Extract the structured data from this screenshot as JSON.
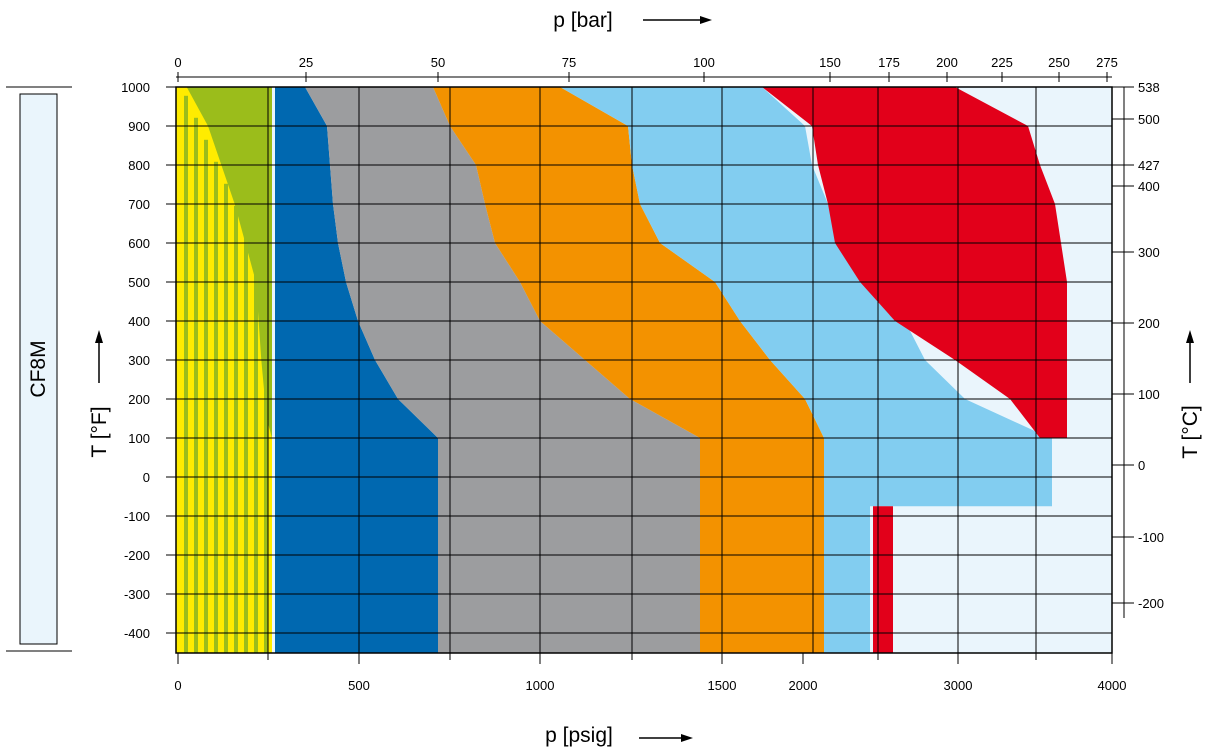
{
  "chart_data": {
    "type": "area",
    "material_label": "CF8M",
    "xlabel_top": "p [bar]",
    "xlabel_bottom": "p [psig]",
    "ylabel_left": "T [°F]",
    "ylabel_right": "T [°C]",
    "x_top_ticks": [
      "0",
      "25",
      "50",
      "75",
      "100",
      "125",
      "150",
      "175",
      "200",
      "225",
      "250",
      "275"
    ],
    "x_bottom_ticks": [
      "0",
      "500",
      "1000",
      "1500",
      "2000",
      "3000",
      "4000"
    ],
    "y_left_ticks": [
      "1000",
      "900",
      "800",
      "700",
      "600",
      "500",
      "400",
      "300",
      "200",
      "100",
      "0",
      "-100",
      "-200",
      "-300",
      "-400"
    ],
    "y_right_ticks": [
      "538",
      "500",
      "427",
      "400",
      "300",
      "200",
      "100",
      "0",
      "-100",
      "-200"
    ],
    "ylim_F": [
      -450,
      1000
    ],
    "colors": {
      "yellow": "#ffec00",
      "green": "#9bbd1b",
      "blue": "#0068b0",
      "gray": "#9c9d9f",
      "orange": "#f39200",
      "lightblue": "#82cdf0",
      "red": "#e2001a",
      "background": "#eaf5fc"
    },
    "series": [
      {
        "color": "yellow",
        "points": [
          [
            0,
            1000
          ],
          [
            0,
            -450
          ],
          [
            18,
            -450
          ],
          [
            18,
            100
          ],
          [
            18,
            1000
          ]
        ]
      },
      {
        "color": "green",
        "points": [
          [
            1,
            1000
          ],
          [
            18,
            1000
          ],
          [
            18,
            100
          ],
          [
            17,
            150
          ],
          [
            16,
            300
          ],
          [
            15,
            500
          ],
          [
            11,
            700
          ],
          [
            6,
            900
          ],
          [
            2,
            1000
          ]
        ]
      },
      {
        "color": "blue",
        "points": [
          [
            19,
            1000
          ],
          [
            25,
            1000
          ],
          [
            29,
            900
          ],
          [
            30,
            800
          ],
          [
            31,
            700
          ],
          [
            33,
            600
          ],
          [
            34,
            500
          ],
          [
            36,
            400
          ],
          [
            39,
            300
          ],
          [
            43,
            200
          ],
          [
            50,
            100
          ],
          [
            50,
            -450
          ],
          [
            19,
            -450
          ]
        ]
      },
      {
        "color": "gray",
        "points": [
          [
            25,
            1000
          ],
          [
            49,
            1000
          ],
          [
            52,
            900
          ],
          [
            55,
            800
          ],
          [
            57,
            700
          ],
          [
            59,
            600
          ],
          [
            62,
            500
          ],
          [
            68,
            400
          ],
          [
            77,
            300
          ],
          [
            87,
            200
          ],
          [
            99,
            100
          ],
          [
            99,
            -450
          ],
          [
            50,
            -450
          ],
          [
            50,
            100
          ],
          [
            43,
            200
          ],
          [
            39,
            300
          ],
          [
            36,
            400
          ],
          [
            34,
            500
          ],
          [
            33,
            600
          ],
          [
            31,
            700
          ],
          [
            30,
            800
          ],
          [
            29,
            900
          ]
        ]
      },
      {
        "color": "orange",
        "points": [
          [
            49,
            1000
          ],
          [
            73,
            1000
          ],
          [
            86,
            900
          ],
          [
            88,
            800
          ],
          [
            90,
            700
          ],
          [
            94,
            600
          ],
          [
            101,
            500
          ],
          [
            107,
            400
          ],
          [
            113,
            300
          ],
          [
            121,
            200
          ],
          [
            125,
            100
          ],
          [
            125,
            -450
          ],
          [
            99,
            -450
          ],
          [
            99,
            100
          ],
          [
            87,
            200
          ],
          [
            77,
            300
          ],
          [
            68,
            400
          ],
          [
            62,
            500
          ],
          [
            59,
            600
          ],
          [
            57,
            700
          ],
          [
            55,
            800
          ],
          [
            52,
            900
          ]
        ]
      },
      {
        "color": "lightblue",
        "points": [
          [
            73,
            1000
          ],
          [
            112,
            1000
          ],
          [
            121,
            900
          ],
          [
            123,
            800
          ],
          [
            126,
            700
          ],
          [
            131,
            600
          ],
          [
            139,
            500
          ],
          [
            150,
            400
          ],
          [
            165,
            300
          ],
          [
            184,
            200
          ],
          [
            206,
            100
          ],
          [
            234,
            100
          ],
          [
            234,
            -75
          ],
          [
            141,
            -75
          ],
          [
            141,
            -450
          ],
          [
            125,
            -450
          ],
          [
            125,
            100
          ],
          [
            121,
            200
          ],
          [
            113,
            300
          ],
          [
            107,
            400
          ],
          [
            101,
            500
          ],
          [
            94,
            600
          ],
          [
            90,
            700
          ],
          [
            88,
            800
          ],
          [
            86,
            900
          ]
        ]
      },
      {
        "color": "red",
        "points": [
          [
            112,
            1000
          ],
          [
            200,
            1000
          ],
          [
            230,
            900
          ],
          [
            236,
            800
          ],
          [
            240,
            700
          ],
          [
            245,
            500
          ],
          [
            245,
            100
          ],
          [
            236,
            100
          ],
          [
            220,
            200
          ],
          [
            200,
            300
          ],
          [
            186,
            400
          ],
          [
            176,
            500
          ],
          [
            170,
            600
          ],
          [
            166,
            700
          ],
          [
            164,
            800
          ],
          [
            162,
            900
          ]
        ]
      },
      {
        "color": "red",
        "points": [
          [
            143,
            -450
          ],
          [
            143,
            -75
          ],
          [
            148,
            -75
          ],
          [
            148,
            -450
          ]
        ]
      }
    ]
  }
}
